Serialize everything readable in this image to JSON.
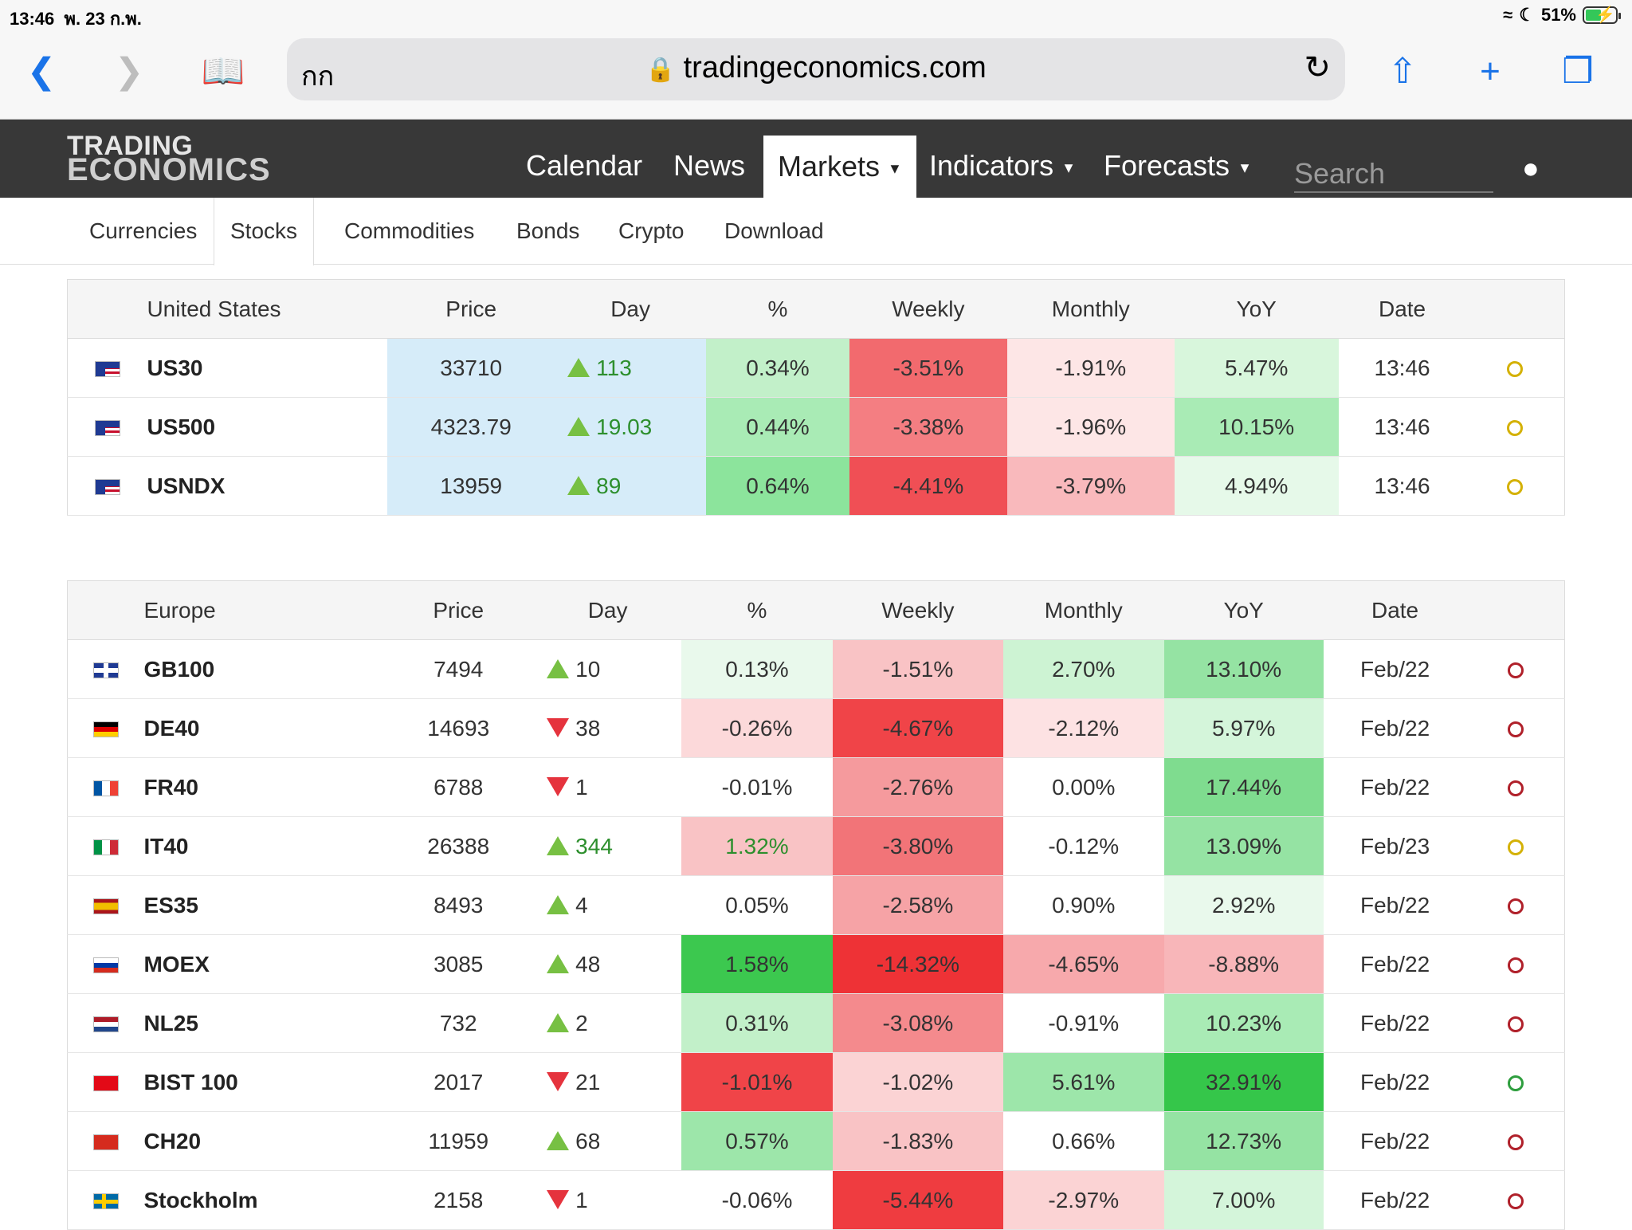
{
  "status_bar": {
    "time": "13:46",
    "date": "พ. 23 ก.พ.",
    "battery": "51%",
    "battery_level": 0.51
  },
  "browser": {
    "aa_label": "กก",
    "url": "tradingeconomics.com",
    "icons": [
      "back-icon",
      "forward-icon",
      "bookmarks-icon",
      "lock-icon",
      "reload-icon",
      "share-icon",
      "new-tab-icon",
      "tabs-icon"
    ]
  },
  "site": {
    "logo_line1": "TRADING",
    "logo_line2": "ECONOMICS",
    "nav": [
      "Calendar",
      "News",
      "Markets",
      "Indicators",
      "Forecasts"
    ],
    "active_nav": "Markets",
    "search_placeholder": "Search"
  },
  "subtabs": [
    "Currencies",
    "Stocks",
    "Commodities",
    "Bonds",
    "Crypto",
    "Download"
  ],
  "active_subtab": "Stocks",
  "tables": [
    {
      "region": "United States",
      "columns": [
        "Price",
        "Day",
        "%",
        "Weekly",
        "Monthly",
        "YoY",
        "Date"
      ],
      "rows": [
        {
          "flag": "us",
          "symbol": "US30",
          "price": "33710",
          "day_dir": "up",
          "day": "113",
          "pct": "0.34%",
          "weekly": "-3.51%",
          "monthly": "-1.91%",
          "yoy": "5.47%",
          "date": "13:46",
          "clock_color": "#d4b106",
          "bg": {
            "price": "#d6ecf9",
            "day": "#d6ecf9",
            "pct": "#c2f0c9",
            "weekly": "#f26a6e",
            "monthly": "#fde6e6",
            "yoy": "#d8f6dc"
          }
        },
        {
          "flag": "us",
          "symbol": "US500",
          "price": "4323.79",
          "day_dir": "up",
          "day": "19.03",
          "pct": "0.44%",
          "weekly": "-3.38%",
          "monthly": "-1.96%",
          "yoy": "10.15%",
          "date": "13:46",
          "clock_color": "#d4b106",
          "bg": {
            "price": "#d6ecf9",
            "day": "#d6ecf9",
            "pct": "#a9ebb5",
            "weekly": "#f47e82",
            "monthly": "#fde6e6",
            "yoy": "#a9ebb5"
          }
        },
        {
          "flag": "us",
          "symbol": "USNDX",
          "price": "13959",
          "day_dir": "up",
          "day": "89",
          "pct": "0.64%",
          "weekly": "-4.41%",
          "monthly": "-3.79%",
          "yoy": "4.94%",
          "date": "13:46",
          "clock_color": "#d4b106",
          "bg": {
            "price": "#d6ecf9",
            "day": "#d6ecf9",
            "pct": "#8ce49c",
            "weekly": "#f04f55",
            "monthly": "#f9b9bc",
            "yoy": "#e6f9e9"
          }
        }
      ]
    },
    {
      "region": "Europe",
      "columns": [
        "Price",
        "Day",
        "%",
        "Weekly",
        "Monthly",
        "YoY",
        "Date"
      ],
      "rows": [
        {
          "flag": "gb",
          "symbol": "GB100",
          "price": "7494",
          "day_dir": "up",
          "day": "10",
          "pct": "0.13%",
          "weekly": "-1.51%",
          "monthly": "2.70%",
          "yoy": "13.10%",
          "date": "Feb/22",
          "clock_color": "#b0202a",
          "bg": {
            "pct": "#e9f9ec",
            "weekly": "#f9c3c5",
            "monthly": "#cdf3d3",
            "yoy": "#95e3a3"
          }
        },
        {
          "flag": "de",
          "symbol": "DE40",
          "price": "14693",
          "day_dir": "down",
          "day": "38",
          "pct": "-0.26%",
          "weekly": "-4.67%",
          "monthly": "-2.12%",
          "yoy": "5.97%",
          "date": "Feb/22",
          "clock_color": "#b0202a",
          "bg": {
            "pct": "#fcd9da",
            "weekly": "#f04448",
            "monthly": "#fde2e3",
            "yoy": "#d4f5da"
          }
        },
        {
          "flag": "fr",
          "symbol": "FR40",
          "price": "6788",
          "day_dir": "down",
          "day": "1",
          "pct": "-0.01%",
          "weekly": "-2.76%",
          "monthly": "0.00%",
          "yoy": "17.44%",
          "date": "Feb/22",
          "clock_color": "#b0202a",
          "bg": {
            "pct": "#ffffff",
            "weekly": "#f59a9d",
            "monthly": "#ffffff",
            "yoy": "#7fdc8f"
          }
        },
        {
          "flag": "it",
          "symbol": "IT40",
          "price": "26388",
          "day_dir": "up",
          "day": "344",
          "pct": "1.32%",
          "weekly": "-3.80%",
          "monthly": "-0.12%",
          "yoy": "13.09%",
          "date": "Feb/23",
          "clock_color": "#d4b106",
          "bg": {
            "pct": "#f9c3c5",
            "weekly": "#f27478",
            "monthly": "#ffffff",
            "yoy": "#95e3a3"
          },
          "pct_color": "#2d8f2d"
        },
        {
          "flag": "es",
          "symbol": "ES35",
          "price": "8493",
          "day_dir": "up",
          "day": "4",
          "pct": "0.05%",
          "weekly": "-2.58%",
          "monthly": "0.90%",
          "yoy": "2.92%",
          "date": "Feb/22",
          "clock_color": "#b0202a",
          "bg": {
            "pct": "#ffffff",
            "weekly": "#f6a3a6",
            "monthly": "#ffffff",
            "yoy": "#e9f9ec"
          }
        },
        {
          "flag": "ru",
          "symbol": "MOEX",
          "price": "3085",
          "day_dir": "up",
          "day": "48",
          "pct": "1.58%",
          "weekly": "-14.32%",
          "monthly": "-4.65%",
          "yoy": "-8.88%",
          "date": "Feb/22",
          "clock_color": "#b0202a",
          "bg": {
            "pct": "#3cc84f",
            "weekly": "#ee3236",
            "monthly": "#f7a9ac",
            "yoy": "#f8b6b9"
          }
        },
        {
          "flag": "nl",
          "symbol": "NL25",
          "price": "732",
          "day_dir": "up",
          "day": "2",
          "pct": "0.31%",
          "weekly": "-3.08%",
          "monthly": "-0.91%",
          "yoy": "10.23%",
          "date": "Feb/22",
          "clock_color": "#b0202a",
          "bg": {
            "pct": "#c2f0c9",
            "weekly": "#f48a8d",
            "monthly": "#ffffff",
            "yoy": "#a9ebb5"
          }
        },
        {
          "flag": "tr",
          "symbol": "BIST 100",
          "price": "2017",
          "day_dir": "down",
          "day": "21",
          "pct": "-1.01%",
          "weekly": "-1.02%",
          "monthly": "5.61%",
          "yoy": "32.91%",
          "date": "Feb/22",
          "clock_color": "#2e9e3e",
          "bg": {
            "pct": "#f04448",
            "weekly": "#fbd3d4",
            "monthly": "#9de6aa",
            "yoy": "#35c64a"
          }
        },
        {
          "flag": "ch",
          "symbol": "CH20",
          "price": "11959",
          "day_dir": "up",
          "day": "68",
          "pct": "0.57%",
          "weekly": "-1.83%",
          "monthly": "0.66%",
          "yoy": "12.73%",
          "date": "Feb/22",
          "clock_color": "#b0202a",
          "bg": {
            "pct": "#9de6aa",
            "weekly": "#f9c3c5",
            "monthly": "#ffffff",
            "yoy": "#95e3a3"
          }
        },
        {
          "flag": "se",
          "symbol": "Stockholm",
          "price": "2158",
          "day_dir": "down",
          "day": "1",
          "pct": "-0.06%",
          "weekly": "-5.44%",
          "monthly": "-2.97%",
          "yoy": "7.00%",
          "date": "Feb/22",
          "clock_color": "#b0202a",
          "bg": {
            "pct": "#ffffff",
            "weekly": "#ef3c40",
            "monthly": "#fbd3d4",
            "yoy": "#d4f5da"
          }
        }
      ]
    }
  ]
}
